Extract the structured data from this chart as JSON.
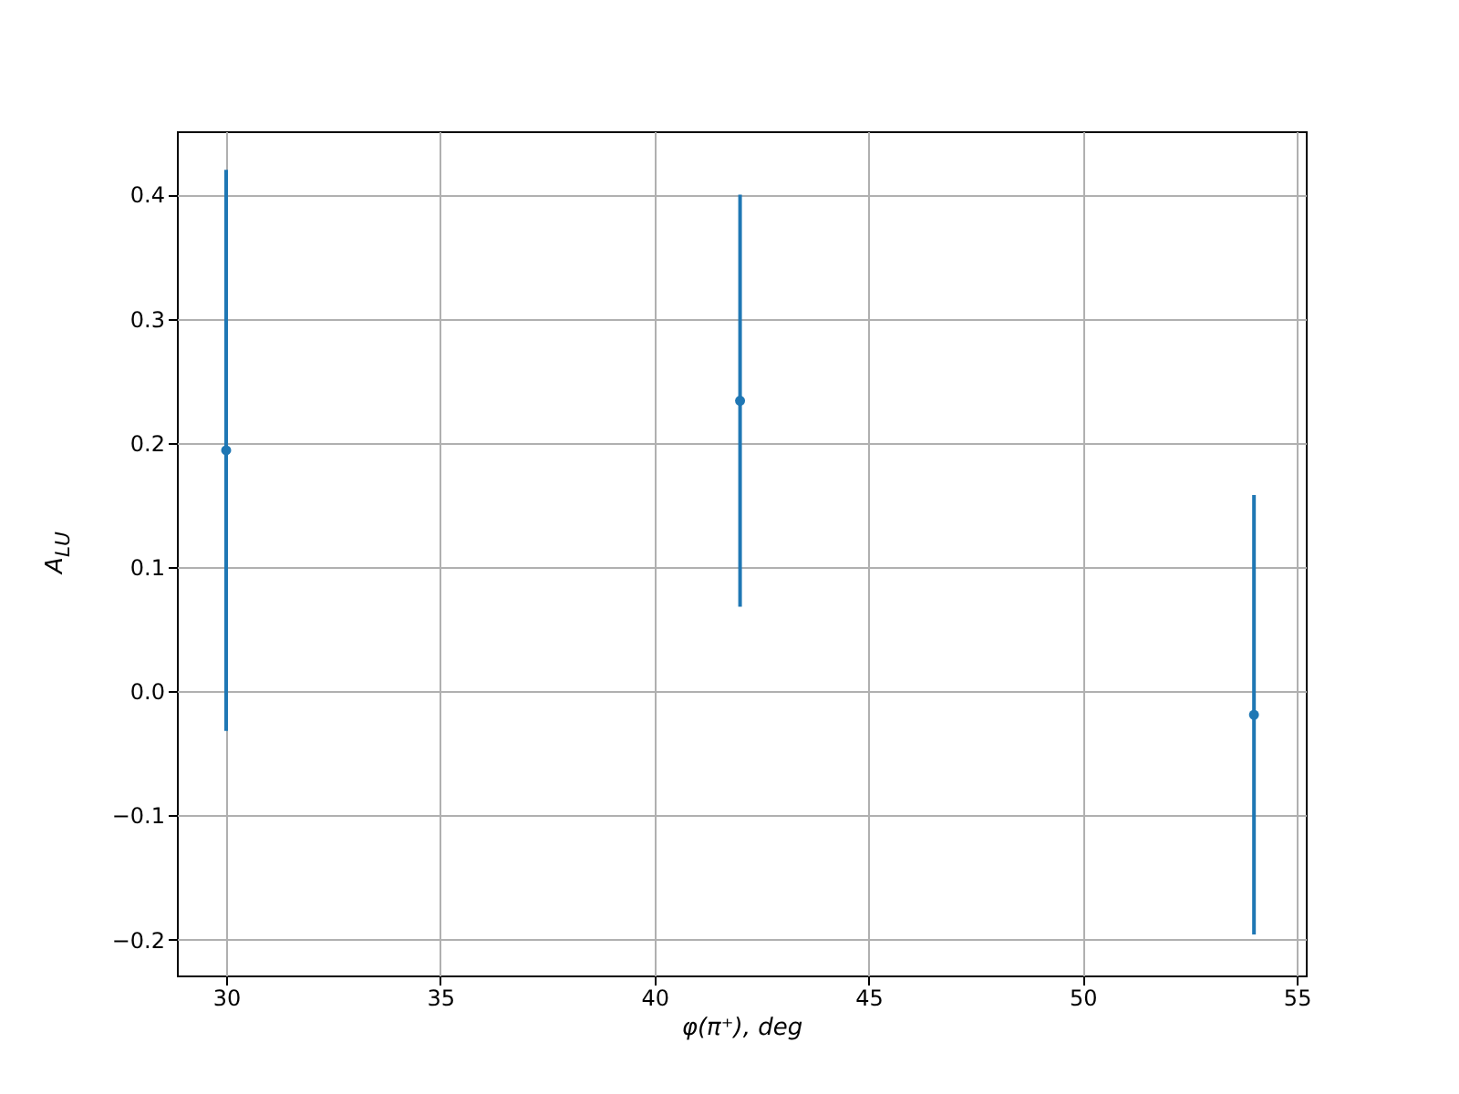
{
  "chart_data": {
    "type": "scatter",
    "xlabel": "φ(π⁺), deg",
    "ylabel": "A$_{LU}$",
    "x": [
      30,
      42,
      54
    ],
    "series": [
      {
        "color": "#1f77b4",
        "values": [
          0.194,
          0.234,
          -0.019
        ],
        "errors": [
          0.226,
          0.166,
          0.177
        ]
      }
    ],
    "xlim": [
      28.85,
      55.21
    ],
    "xticks": [
      30,
      35,
      40,
      45,
      50,
      55
    ],
    "ylim": [
      -0.229,
      0.451
    ],
    "yticks": [
      {
        "value": -0.2,
        "label": "−0.2"
      },
      {
        "value": -0.1,
        "label": "−0.1"
      },
      {
        "value": 0,
        "label": "0.0"
      },
      0.1,
      0.2,
      0.3,
      0.4
    ],
    "grid": true,
    "marker": "circle"
  }
}
